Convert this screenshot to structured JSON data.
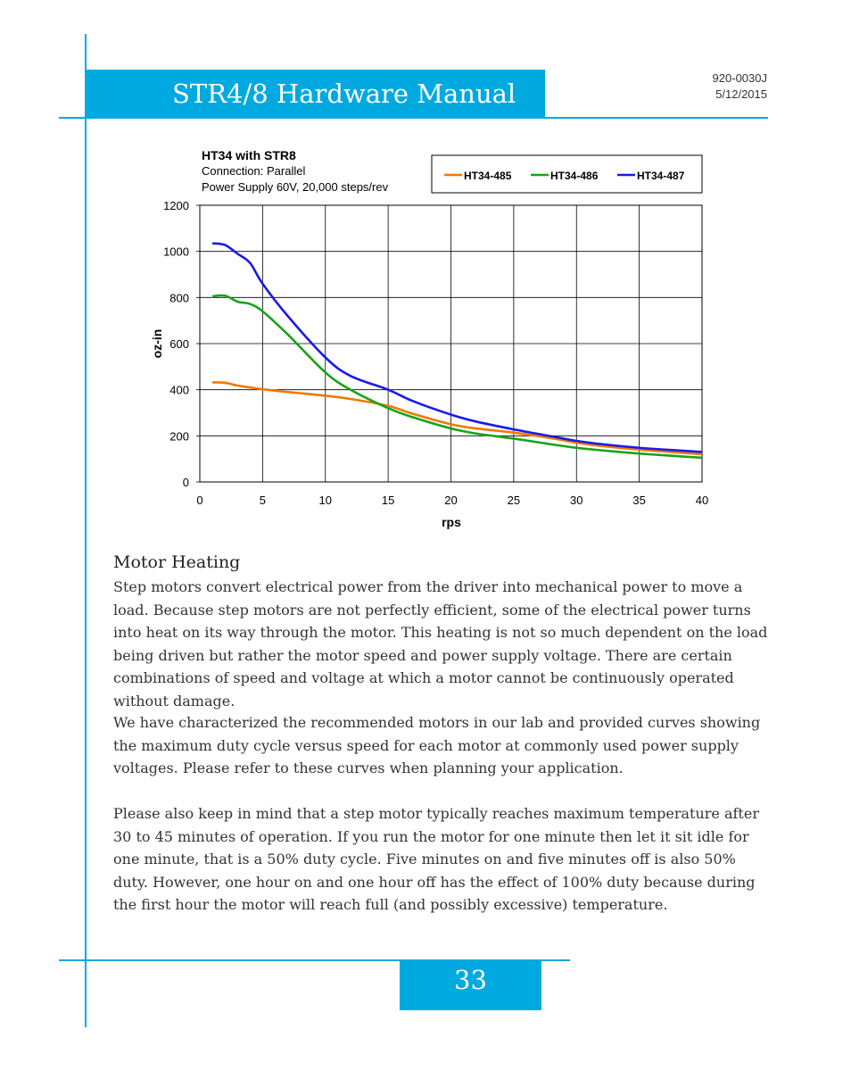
{
  "header": {
    "title": "STR4/8 Hardware Manual",
    "doc_number": "920-0030J",
    "date": "5/12/2015"
  },
  "chart": {
    "title": "HT34 with STR8",
    "subtitle_line1": "Connection: Parallel",
    "subtitle_line2": "Power Supply 60V, 20,000 steps/rev"
  },
  "chart_data": {
    "type": "line",
    "title": "HT34 with STR8",
    "subtitle": [
      "Connection: Parallel",
      "Power Supply 60V, 20,000 steps/rev"
    ],
    "xlabel": "rps",
    "ylabel": "oz-in",
    "xlim": [
      0,
      40
    ],
    "ylim": [
      0,
      1200
    ],
    "xticks": [
      0,
      5,
      10,
      15,
      20,
      25,
      30,
      35,
      40
    ],
    "yticks": [
      0,
      200,
      400,
      600,
      800,
      1000,
      1200
    ],
    "grid": true,
    "legend_position": "top",
    "x": [
      1,
      2,
      3,
      4,
      5,
      7,
      10,
      12,
      15,
      17,
      20,
      22,
      25,
      28,
      30,
      32,
      35,
      38,
      40
    ],
    "series": [
      {
        "name": "HT34-485",
        "color": "#f07800",
        "values": [
          432,
          430,
          418,
          410,
          402,
          390,
          374,
          360,
          330,
          295,
          250,
          232,
          214,
          190,
          170,
          156,
          140,
          128,
          120
        ]
      },
      {
        "name": "HT34-486",
        "color": "#17a317",
        "values": [
          805,
          808,
          782,
          772,
          740,
          640,
          475,
          400,
          320,
          280,
          232,
          210,
          188,
          163,
          148,
          137,
          123,
          112,
          105
        ]
      },
      {
        "name": "HT34-487",
        "color": "#1a1ae6",
        "values": [
          1035,
          1028,
          990,
          950,
          860,
          720,
          540,
          460,
          400,
          350,
          292,
          262,
          228,
          198,
          178,
          164,
          148,
          137,
          130
        ]
      }
    ]
  },
  "section": {
    "title": "Motor Heating",
    "paragraphs": [
      "Step motors convert electrical power from the driver into mechanical power to move a load. Because step motors are not perfectly efficient, some of the electrical power turns into heat on its way through the motor. This heating is not so much dependent on the load being driven but rather the motor speed and power supply voltage. There are certain combinations of speed and voltage at which a motor cannot be continuously operated without damage.",
      "We have characterized the recommended motors in our lab and provided curves showing the maximum duty cycle versus speed for each motor at commonly used power supply voltages. Please refer to these curves when planning your application.",
      "Please also keep in mind that a step motor typically reaches maximum temperature after 30 to 45 minutes of operation. If you run the motor for one minute then let it sit idle for one minute, that is a 50% duty cycle. Five minutes on and five minutes off is also 50% duty. However, one hour on and one hour off has the effect of 100% duty because during the first hour the motor will reach full (and possibly excessive) temperature."
    ]
  },
  "footer": {
    "page_number": "33"
  }
}
